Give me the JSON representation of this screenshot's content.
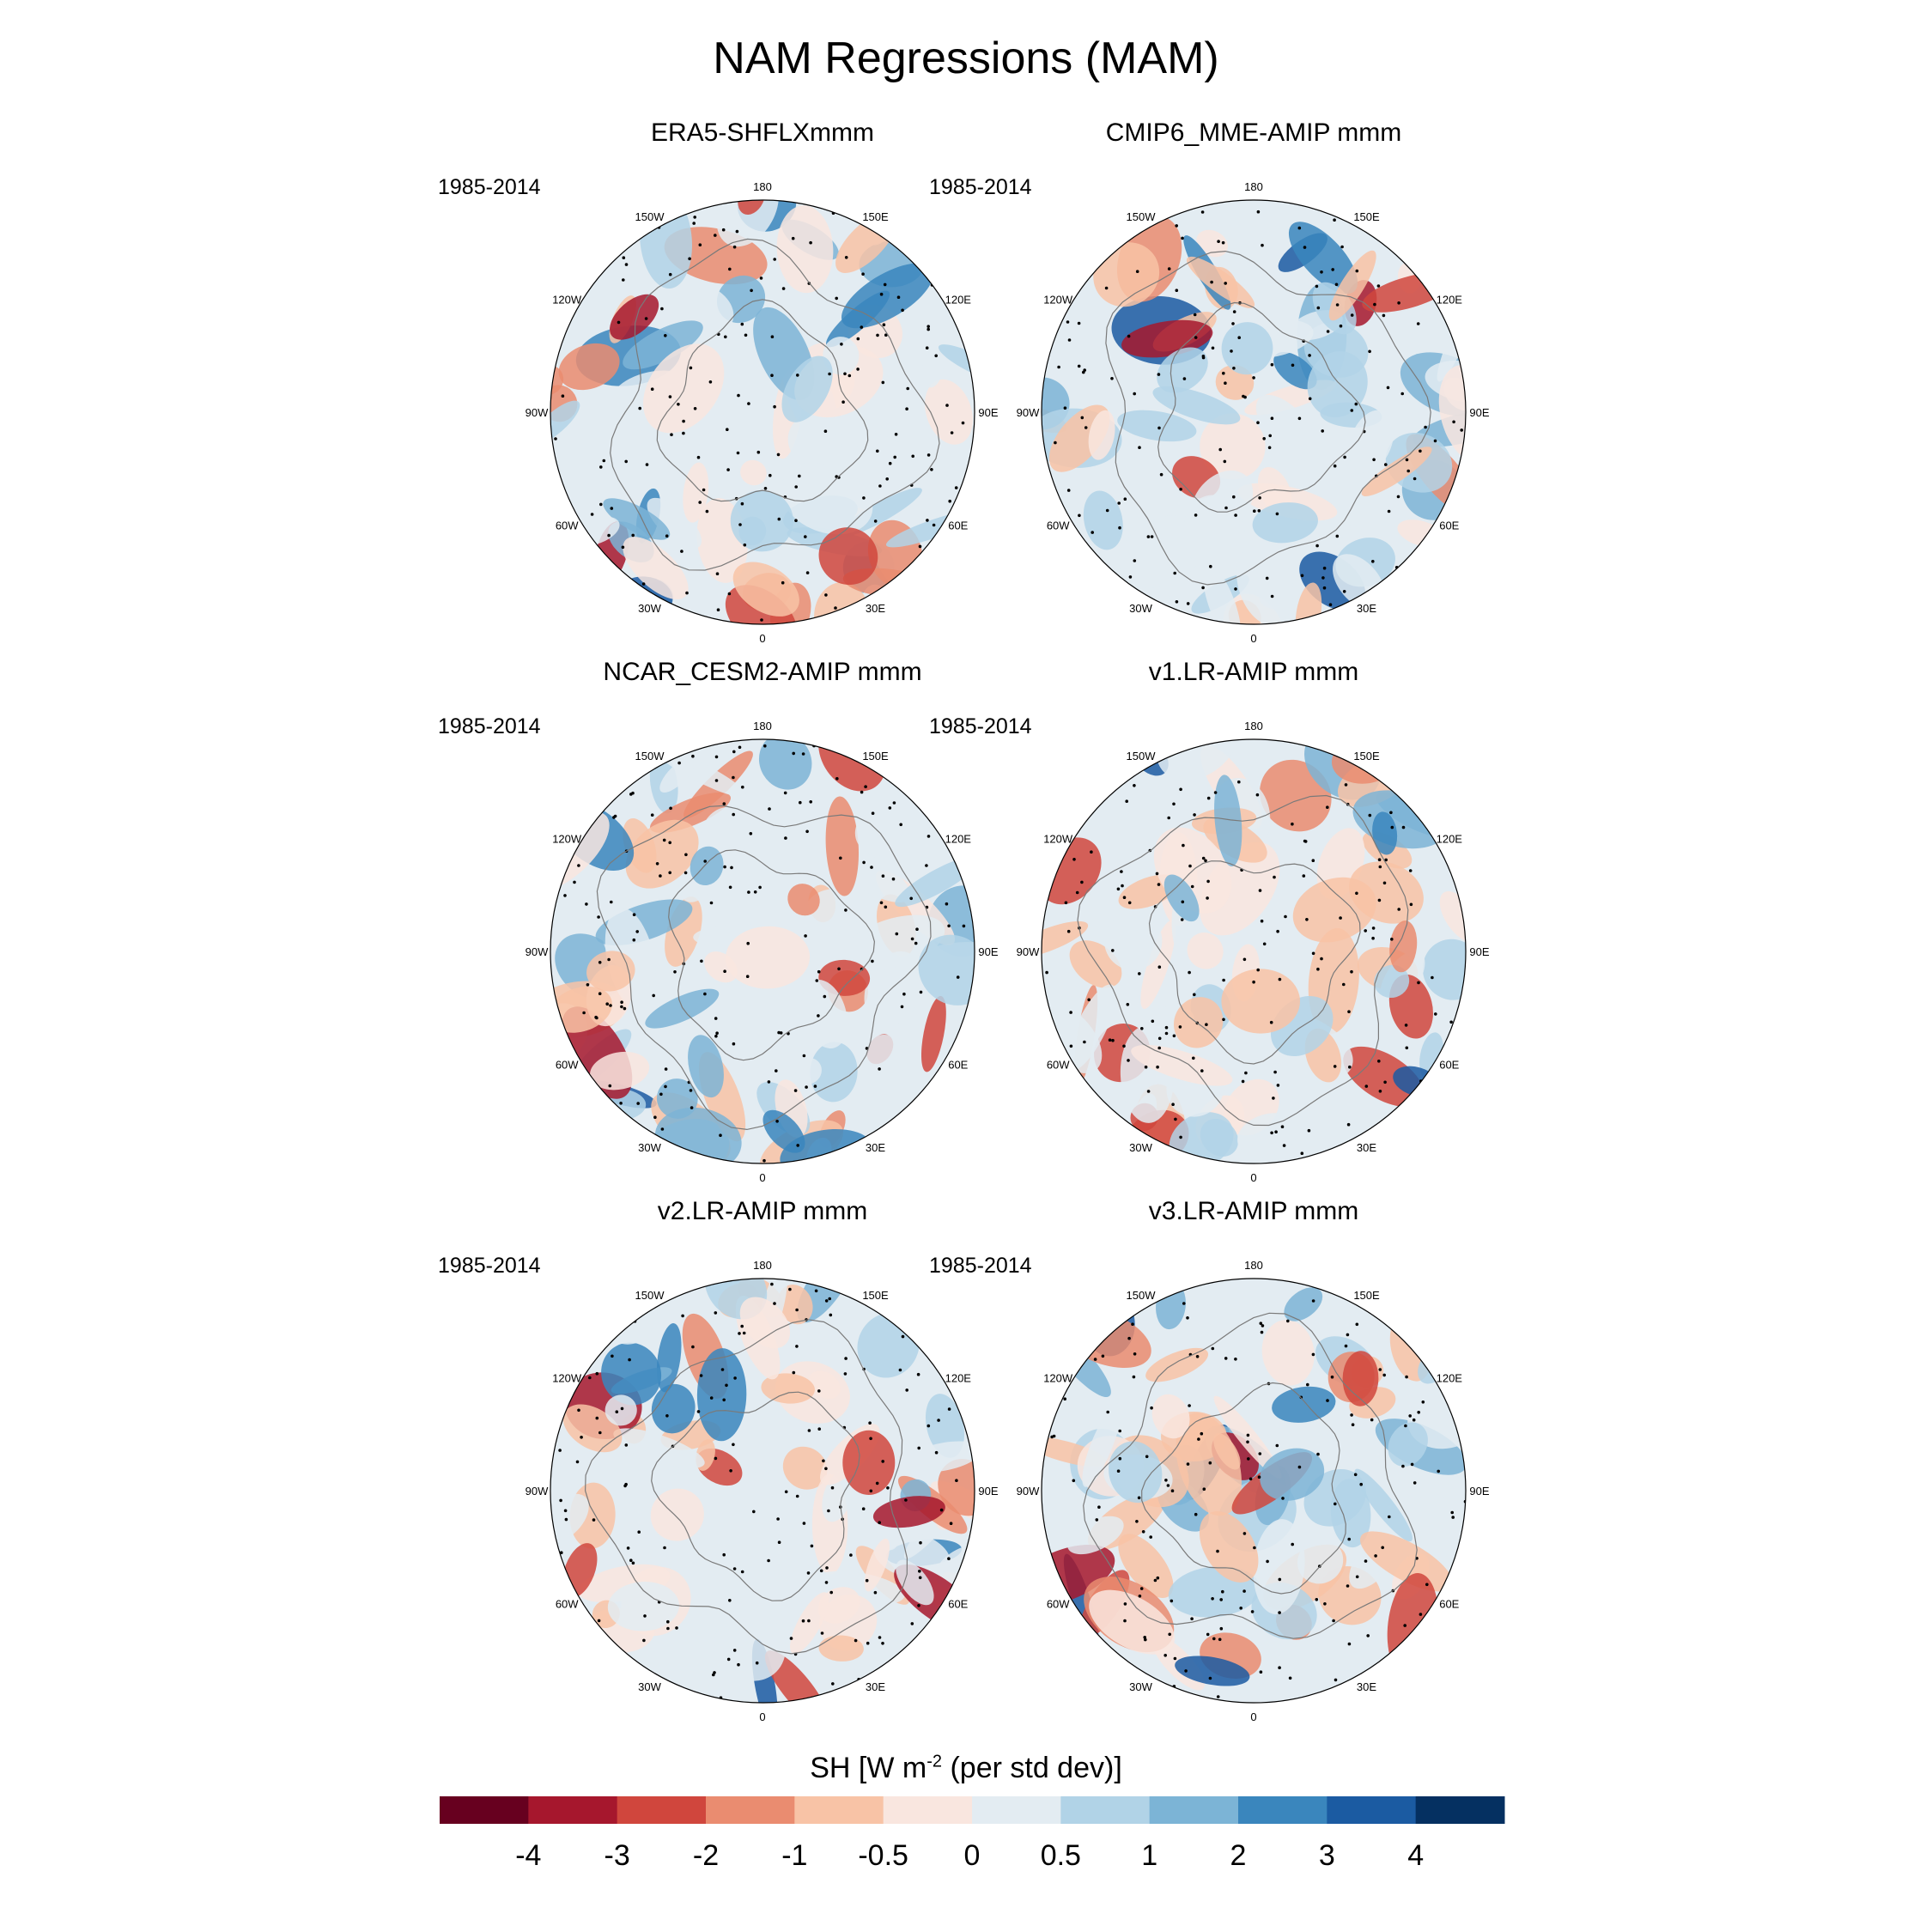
{
  "figure": {
    "title": "NAM Regressions (MAM)",
    "period": "1985-2014",
    "colorbar_title_prefix": "SH [W m",
    "colorbar_title_exponent": "-2",
    "colorbar_title_suffix": " (per std dev)]"
  },
  "chart_data": {
    "type": "heatmap",
    "projection": "north polar stereographic",
    "variable": "SH",
    "units": "W m-2 (per std dev)",
    "colorbar": {
      "ticks": [
        "-4",
        "-3",
        "-2",
        "-1",
        "-0.5",
        "0",
        "0.5",
        "1",
        "2",
        "3",
        "4"
      ],
      "colors": [
        "#67001f",
        "#a6172d",
        "#d0463d",
        "#ea8c70",
        "#f8c3a6",
        "#f9e6df",
        "#e3ecf2",
        "#b1d3e7",
        "#7cb4d6",
        "#3a86bd",
        "#1b5ba2",
        "#053061"
      ]
    },
    "longitude_labels": [
      "180",
      "150E",
      "120E",
      "90E",
      "60E",
      "30E",
      "0",
      "30W",
      "60W",
      "90W",
      "120W",
      "150W"
    ],
    "panels": [
      {
        "title": "ERA5-SHFLXmmm",
        "period": "1985-2014"
      },
      {
        "title": "CMIP6_MME-AMIP  mmm",
        "period": "1985-2014"
      },
      {
        "title": "NCAR_CESM2-AMIP  mmm",
        "period": "1985-2014"
      },
      {
        "title": "v1.LR-AMIP  mmm",
        "period": "1985-2014"
      },
      {
        "title": "v2.LR-AMIP  mmm",
        "period": "1985-2014"
      },
      {
        "title": "v3.LR-AMIP  mmm",
        "period": "1985-2014"
      }
    ]
  }
}
